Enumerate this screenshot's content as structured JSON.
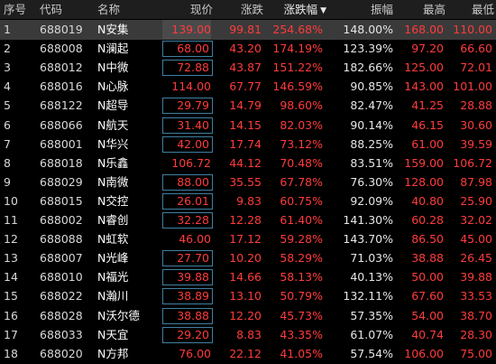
{
  "columns": {
    "no": "序号",
    "code": "代码",
    "name": "名称",
    "price": "现价",
    "change": "涨跌",
    "pct": "涨跌幅",
    "amplitude": "振幅",
    "high": "最高",
    "low": "最低"
  },
  "sort_indicator": "▼",
  "accent_color": "#ff3b3b",
  "selected_row_index": 0,
  "rows": [
    {
      "no": "1",
      "code": "688019",
      "name": "N安集",
      "price": "139.00",
      "change": "99.81",
      "pct": "254.68%",
      "amplitude": "148.00%",
      "high": "168.00",
      "low": "110.00",
      "boxed": false
    },
    {
      "no": "2",
      "code": "688008",
      "name": "N澜起",
      "price": "68.00",
      "change": "43.20",
      "pct": "174.19%",
      "amplitude": "123.39%",
      "high": "97.20",
      "low": "66.60",
      "boxed": true
    },
    {
      "no": "3",
      "code": "688012",
      "name": "N中微",
      "price": "72.88",
      "change": "43.87",
      "pct": "151.22%",
      "amplitude": "182.66%",
      "high": "125.00",
      "low": "72.01",
      "boxed": true
    },
    {
      "no": "4",
      "code": "688016",
      "name": "N心脉",
      "price": "114.00",
      "change": "67.77",
      "pct": "146.59%",
      "amplitude": "90.85%",
      "high": "143.00",
      "low": "101.00",
      "boxed": false
    },
    {
      "no": "5",
      "code": "688122",
      "name": "N超导",
      "price": "29.79",
      "change": "14.79",
      "pct": "98.60%",
      "amplitude": "82.47%",
      "high": "41.25",
      "low": "28.88",
      "boxed": true
    },
    {
      "no": "6",
      "code": "688066",
      "name": "N航天",
      "price": "31.40",
      "change": "14.15",
      "pct": "82.03%",
      "amplitude": "90.14%",
      "high": "46.15",
      "low": "30.60",
      "boxed": true
    },
    {
      "no": "7",
      "code": "688001",
      "name": "N华兴",
      "price": "42.00",
      "change": "17.74",
      "pct": "73.12%",
      "amplitude": "88.25%",
      "high": "61.00",
      "low": "39.59",
      "boxed": true
    },
    {
      "no": "8",
      "code": "688018",
      "name": "N乐鑫",
      "price": "106.72",
      "change": "44.12",
      "pct": "70.48%",
      "amplitude": "83.51%",
      "high": "159.00",
      "low": "106.72",
      "boxed": false
    },
    {
      "no": "9",
      "code": "688029",
      "name": "N南微",
      "price": "88.00",
      "change": "35.55",
      "pct": "67.78%",
      "amplitude": "76.30%",
      "high": "128.00",
      "low": "87.98",
      "boxed": true
    },
    {
      "no": "10",
      "code": "688015",
      "name": "N交控",
      "price": "26.01",
      "change": "9.83",
      "pct": "60.75%",
      "amplitude": "92.09%",
      "high": "40.80",
      "low": "25.90",
      "boxed": true
    },
    {
      "no": "11",
      "code": "688002",
      "name": "N睿创",
      "price": "32.28",
      "change": "12.28",
      "pct": "61.40%",
      "amplitude": "141.30%",
      "high": "60.28",
      "low": "32.02",
      "boxed": true
    },
    {
      "no": "12",
      "code": "688088",
      "name": "N虹软",
      "price": "46.00",
      "change": "17.12",
      "pct": "59.28%",
      "amplitude": "143.70%",
      "high": "86.50",
      "low": "45.00",
      "boxed": false
    },
    {
      "no": "13",
      "code": "688007",
      "name": "N光峰",
      "price": "27.70",
      "change": "10.20",
      "pct": "58.29%",
      "amplitude": "71.03%",
      "high": "38.88",
      "low": "26.45",
      "boxed": true
    },
    {
      "no": "14",
      "code": "688010",
      "name": "N福光",
      "price": "39.88",
      "change": "14.66",
      "pct": "58.13%",
      "amplitude": "40.13%",
      "high": "50.00",
      "low": "39.88",
      "boxed": true
    },
    {
      "no": "15",
      "code": "688022",
      "name": "N瀚川",
      "price": "38.89",
      "change": "13.10",
      "pct": "50.79%",
      "amplitude": "132.11%",
      "high": "67.60",
      "low": "33.53",
      "boxed": true
    },
    {
      "no": "16",
      "code": "688028",
      "name": "N沃尔德",
      "price": "38.88",
      "change": "12.20",
      "pct": "45.73%",
      "amplitude": "57.35%",
      "high": "54.00",
      "low": "38.70",
      "boxed": true
    },
    {
      "no": "17",
      "code": "688033",
      "name": "N天宜",
      "price": "29.20",
      "change": "8.83",
      "pct": "43.35%",
      "amplitude": "61.07%",
      "high": "40.74",
      "low": "28.30",
      "boxed": true
    },
    {
      "no": "18",
      "code": "688020",
      "name": "N方邦",
      "price": "76.00",
      "change": "22.12",
      "pct": "41.05%",
      "amplitude": "57.54%",
      "high": "106.00",
      "low": "75.00",
      "boxed": false
    }
  ]
}
